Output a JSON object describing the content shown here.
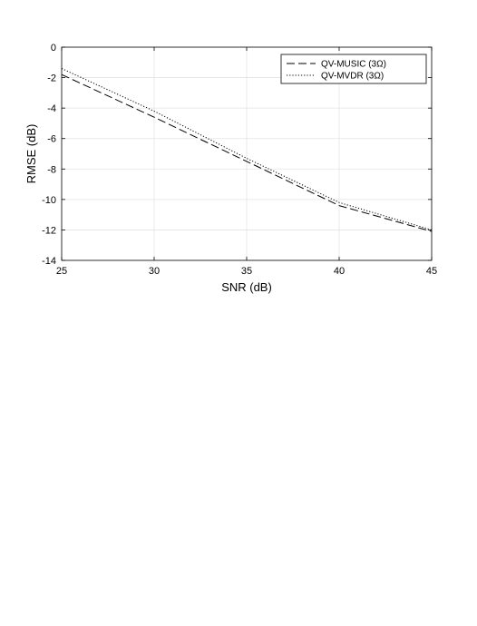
{
  "chart_data": {
    "type": "line",
    "title": "",
    "xlabel": "SNR (dB)",
    "ylabel": "RMSE (dB)",
    "xlim": [
      25,
      45
    ],
    "ylim": [
      -14,
      0
    ],
    "xticks": [
      25,
      30,
      35,
      40,
      45
    ],
    "yticks": [
      0,
      -2,
      -4,
      -6,
      -8,
      -10,
      -12,
      -14
    ],
    "grid": true,
    "legend_position": "top-right",
    "series": [
      {
        "name": "QV-MUSIC (3Ω)",
        "style": "dashed",
        "color": "#000000",
        "x": [
          25,
          30,
          35,
          40,
          45
        ],
        "y": [
          -1.8,
          -4.6,
          -7.5,
          -10.4,
          -12.1
        ]
      },
      {
        "name": "QV-MVDR (3Ω)",
        "style": "dotted",
        "color": "#000000",
        "x": [
          25,
          30,
          35,
          40,
          45
        ],
        "y": [
          -1.4,
          -4.2,
          -7.3,
          -10.2,
          -12.0
        ]
      }
    ]
  }
}
